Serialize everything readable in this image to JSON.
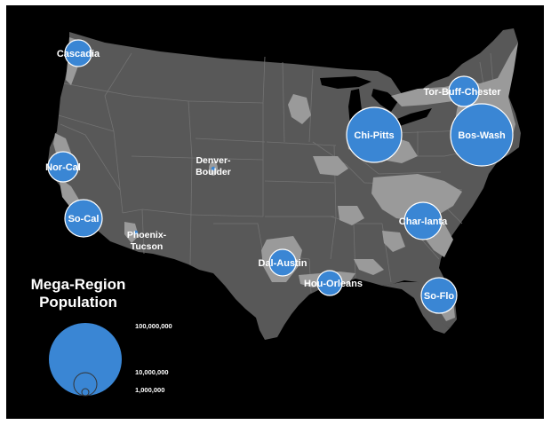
{
  "colors": {
    "background": "#000000",
    "land": "#585858",
    "urban": "#9a9a9a",
    "state_border": "#727272",
    "bubble": "#3a86d4",
    "bubble_stroke": "#ffffff",
    "text": "#ffffff"
  },
  "regions": [
    {
      "id": "cascadia",
      "label": "Cascadia",
      "marker": "bubble"
    },
    {
      "id": "nor-cal",
      "label": "Nor-Cal",
      "marker": "bubble"
    },
    {
      "id": "so-cal",
      "label": "So-Cal",
      "marker": "bubble"
    },
    {
      "id": "phoenix-tucson",
      "label_lines": [
        "Phoenix-",
        "Tucson"
      ],
      "marker": "dot"
    },
    {
      "id": "denver-boulder",
      "label_lines": [
        "Denver-",
        "Boulder"
      ],
      "marker": "dot"
    },
    {
      "id": "dal-austin",
      "label": "Dal-Austin",
      "marker": "bubble"
    },
    {
      "id": "hou-orleans",
      "label": "Hou-Orleans",
      "marker": "bubble"
    },
    {
      "id": "chi-pitts",
      "label": "Chi-Pitts",
      "marker": "bubble"
    },
    {
      "id": "tor-buff-chester",
      "label": "Tor-Buff-Chester",
      "marker": "bubble"
    },
    {
      "id": "bos-wash",
      "label": "Bos-Wash",
      "marker": "bubble"
    },
    {
      "id": "char-lanta",
      "label": "Char-lanta",
      "marker": "bubble"
    },
    {
      "id": "so-flo",
      "label": "So-Flo",
      "marker": "bubble"
    }
  ],
  "legend": {
    "title_lines": [
      "Mega-Region",
      "Population"
    ],
    "entries": [
      {
        "label": "100,000,000",
        "population": 100000000
      },
      {
        "label": "10,000,000",
        "population": 10000000
      },
      {
        "label": "1,000,000",
        "population": 1000000
      }
    ]
  }
}
